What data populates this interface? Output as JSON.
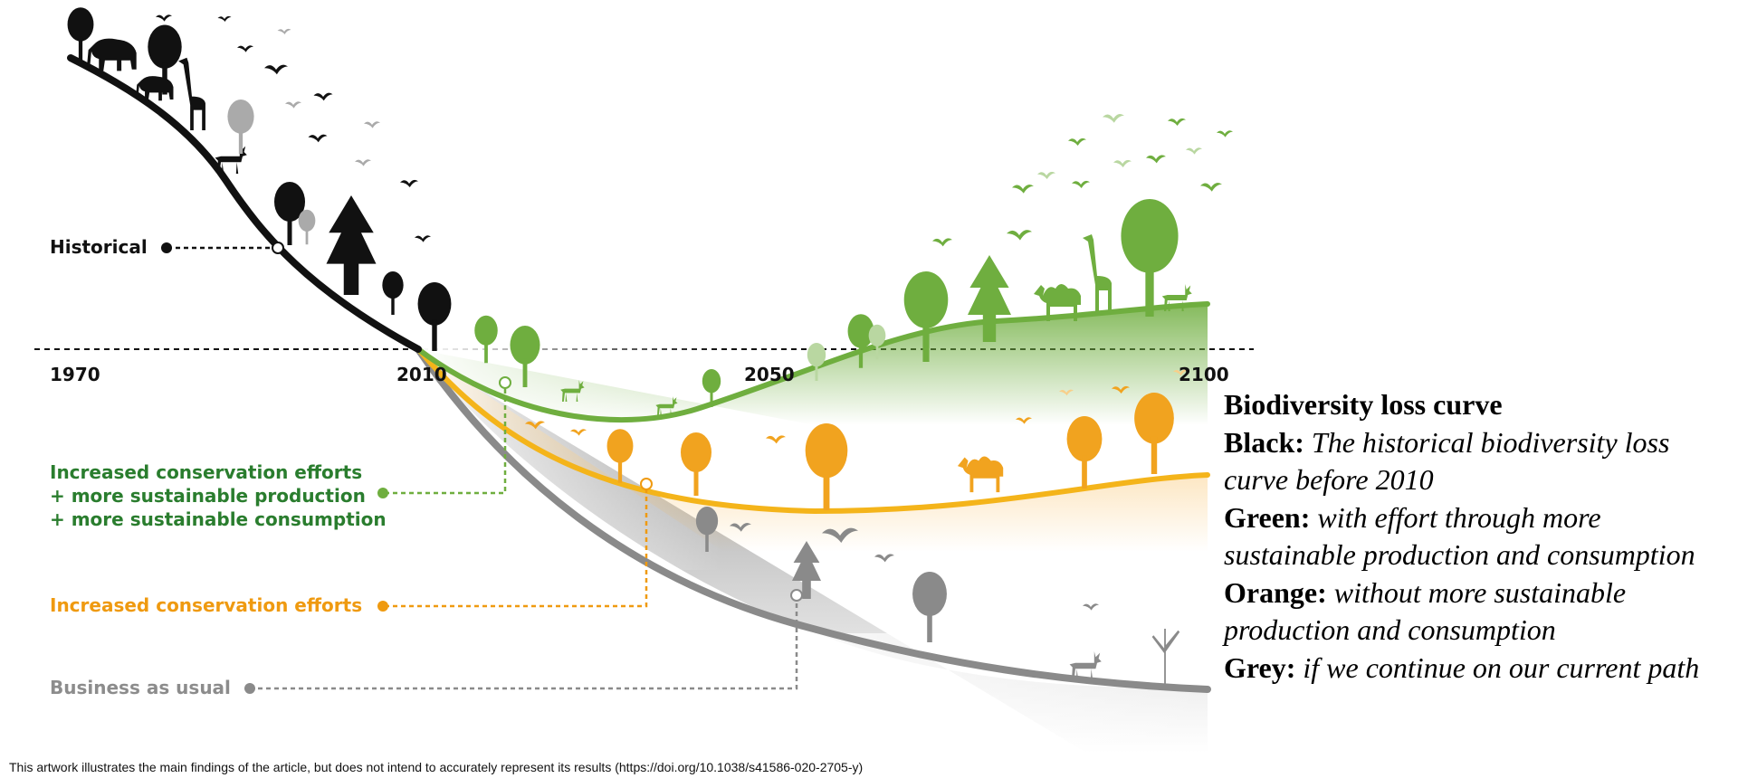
{
  "colors": {
    "historical": "#111111",
    "green": "#6fae3f",
    "green_text": "#2a7d2e",
    "orange": "#f4b41a",
    "orange_text": "#ef9a10",
    "grey": "#8a8a8a",
    "grey_text": "#8c8c8c"
  },
  "labels": {
    "historical": "Historical",
    "green_line1": "Increased conservation efforts",
    "green_line2": "+ more sustainable production",
    "green_line3": "+ more sustainable consumption",
    "orange": "Increased conservation efforts",
    "grey": "Business as usual"
  },
  "years": [
    "1970",
    "2010",
    "2050",
    "2100"
  ],
  "legend": {
    "title": "Biodiversity loss curve",
    "black_key": "Black:",
    "black_text": "The historical biodiversity loss curve before 2010",
    "green_key": "Green:",
    "green_text": "with effort through more sustainable production and consumption",
    "orange_key": "Orange:",
    "orange_text": "without more sustainable production and consumption",
    "grey_key": "Grey:",
    "grey_text": "if we continue on our current path"
  },
  "footnote": "This artwork illustrates the main findings of the article, but does not intend to accurately represent its results (https://doi.org/10.1038/s41586-020-2705-y)",
  "icons": [
    "bird-icon",
    "tree-icon",
    "elephant-icon",
    "giraffe-icon",
    "camel-icon",
    "deer-icon",
    "bare-tree-icon"
  ]
}
